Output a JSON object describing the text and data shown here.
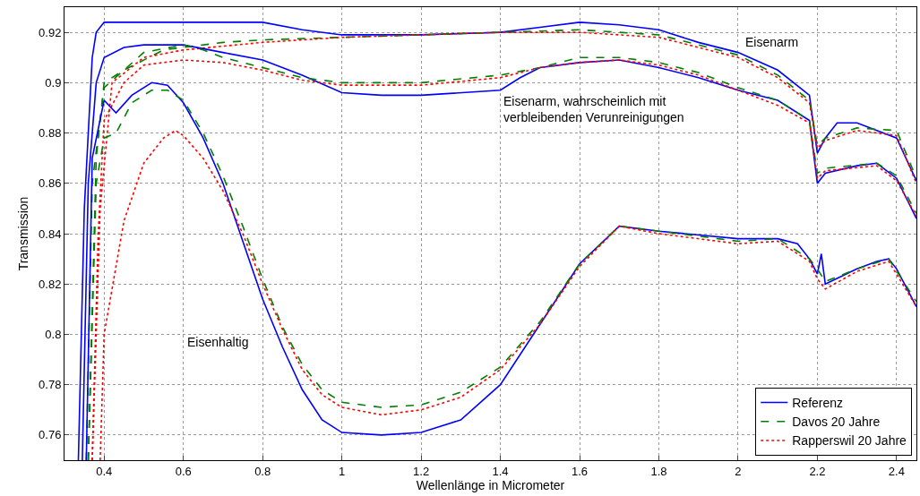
{
  "chart_data": {
    "type": "line",
    "xlabel": "Wellenlänge in Micrometer",
    "ylabel": "Transmission",
    "xlim": [
      0.3,
      2.45
    ],
    "ylim": [
      0.75,
      0.93
    ],
    "xticks": [
      0.4,
      0.6,
      0.8,
      1,
      1.2,
      1.4,
      1.6,
      1.8,
      2,
      2.2,
      2.4
    ],
    "yticks": [
      0.76,
      0.78,
      0.8,
      0.82,
      0.84,
      0.86,
      0.88,
      0.9,
      0.92
    ],
    "grid": true,
    "legend": "bottom right",
    "marker": "none",
    "annotations": [
      "Eisenarm",
      "Eisenarm, wahrscheinlich mit\nverbleibenden Verunreinigungen",
      "Eisenhaltig"
    ],
    "series": [
      {
        "name": "Referenz",
        "color": "#0000ff",
        "line_style": "solid",
        "x": [
          0.335,
          0.35,
          0.37,
          0.38,
          0.4,
          0.5,
          0.6,
          0.8,
          0.9,
          1.0,
          1.2,
          1.4,
          1.5,
          1.6,
          1.7,
          1.8,
          1.9,
          2.0,
          2.1,
          2.18,
          2.2,
          2.22,
          2.25,
          2.3,
          2.4,
          2.45
        ],
        "values": [
          0.75,
          0.85,
          0.91,
          0.92,
          0.924,
          0.924,
          0.924,
          0.924,
          0.921,
          0.919,
          0.919,
          0.92,
          0.922,
          0.924,
          0.923,
          0.921,
          0.916,
          0.912,
          0.905,
          0.895,
          0.872,
          0.878,
          0.884,
          0.884,
          0.878,
          0.861
        ]
      },
      {
        "name": "Davos 20 Jahre",
        "color": "#007f00",
        "line_style": "dashed",
        "x": [
          0.36,
          0.38,
          0.4,
          0.45,
          0.55,
          0.7,
          0.8,
          1.0,
          1.2,
          1.4,
          1.6,
          1.8,
          2.0,
          2.1,
          2.18,
          2.2,
          2.22,
          2.3,
          2.4,
          2.45
        ],
        "values": [
          0.75,
          0.87,
          0.9,
          0.905,
          0.913,
          0.916,
          0.917,
          0.918,
          0.919,
          0.92,
          0.921,
          0.919,
          0.911,
          0.903,
          0.893,
          0.875,
          0.878,
          0.882,
          0.881,
          0.862
        ]
      },
      {
        "name": "Rapperswil 20 Jahre",
        "color": "#ff0000",
        "line_style": "dotted",
        "x": [
          0.37,
          0.39,
          0.42,
          0.5,
          0.6,
          0.8,
          1.0,
          1.2,
          1.4,
          1.6,
          1.8,
          2.0,
          2.1,
          2.18,
          2.2,
          2.22,
          2.3,
          2.4,
          2.45
        ],
        "values": [
          0.75,
          0.85,
          0.9,
          0.91,
          0.913,
          0.916,
          0.918,
          0.919,
          0.92,
          0.92,
          0.918,
          0.91,
          0.902,
          0.892,
          0.874,
          0.877,
          0.881,
          0.879,
          0.86
        ]
      },
      {
        "color": "#0000ff",
        "line_style": "solid",
        "x": [
          0.345,
          0.36,
          0.38,
          0.4,
          0.45,
          0.5,
          0.6,
          0.7,
          0.8,
          0.9,
          1.0,
          1.1,
          1.2,
          1.4,
          1.45,
          1.5,
          1.6,
          1.7,
          1.8,
          1.9,
          2.0,
          2.1,
          2.18,
          2.2,
          2.22,
          2.3,
          2.35,
          2.4,
          2.45
        ],
        "values": [
          0.75,
          0.86,
          0.9,
          0.91,
          0.914,
          0.915,
          0.915,
          0.912,
          0.909,
          0.903,
          0.896,
          0.895,
          0.895,
          0.897,
          0.902,
          0.906,
          0.908,
          0.909,
          0.906,
          0.902,
          0.897,
          0.893,
          0.885,
          0.86,
          0.864,
          0.867,
          0.868,
          0.862,
          0.846
        ]
      },
      {
        "color": "#007f00",
        "line_style": "dashed",
        "x": [
          0.355,
          0.37,
          0.4,
          0.45,
          0.5,
          0.6,
          0.65,
          0.7,
          0.8,
          0.9,
          1.0,
          1.2,
          1.4,
          1.5,
          1.6,
          1.7,
          1.8,
          1.9,
          2.0,
          2.1,
          2.18,
          2.2,
          2.22,
          2.35,
          2.4,
          2.45
        ],
        "values": [
          0.75,
          0.86,
          0.898,
          0.905,
          0.912,
          0.915,
          0.913,
          0.91,
          0.906,
          0.902,
          0.9,
          0.9,
          0.903,
          0.906,
          0.91,
          0.91,
          0.908,
          0.904,
          0.898,
          0.893,
          0.885,
          0.864,
          0.866,
          0.868,
          0.863,
          0.848
        ]
      },
      {
        "color": "#ff0000",
        "line_style": "dotted",
        "x": [
          0.37,
          0.385,
          0.4,
          0.45,
          0.5,
          0.6,
          0.7,
          0.8,
          0.9,
          1.0,
          1.2,
          1.4,
          1.5,
          1.6,
          1.7,
          1.8,
          1.9,
          2.0,
          2.1,
          2.18,
          2.2,
          2.22,
          2.35,
          2.4,
          2.45
        ],
        "values": [
          0.75,
          0.84,
          0.885,
          0.9,
          0.907,
          0.909,
          0.908,
          0.905,
          0.901,
          0.899,
          0.899,
          0.902,
          0.906,
          0.908,
          0.909,
          0.907,
          0.903,
          0.897,
          0.891,
          0.884,
          0.862,
          0.865,
          0.867,
          0.861,
          0.847
        ]
      },
      {
        "color": "#0000ff",
        "line_style": "solid",
        "x": [
          0.355,
          0.37,
          0.4,
          0.43,
          0.47,
          0.52,
          0.56,
          0.6,
          0.65,
          0.7,
          0.75,
          0.8,
          0.85,
          0.9,
          0.95,
          1.0,
          1.1,
          1.2,
          1.3,
          1.4,
          1.5,
          1.6,
          1.7,
          1.8,
          2.0,
          2.1,
          2.15,
          2.18,
          2.2,
          2.21,
          2.22,
          2.3,
          2.35,
          2.38,
          2.4,
          2.45
        ],
        "values": [
          0.75,
          0.87,
          0.893,
          0.888,
          0.895,
          0.9,
          0.899,
          0.892,
          0.878,
          0.86,
          0.837,
          0.814,
          0.795,
          0.778,
          0.766,
          0.761,
          0.76,
          0.761,
          0.766,
          0.78,
          0.804,
          0.828,
          0.843,
          0.841,
          0.838,
          0.838,
          0.836,
          0.83,
          0.824,
          0.832,
          0.82,
          0.826,
          0.829,
          0.83,
          0.826,
          0.811
        ]
      },
      {
        "color": "#007f00",
        "line_style": "dashed",
        "x": [
          0.36,
          0.38,
          0.4,
          0.43,
          0.47,
          0.52,
          0.56,
          0.6,
          0.65,
          0.7,
          0.75,
          0.8,
          0.85,
          0.9,
          0.95,
          1.0,
          1.1,
          1.2,
          1.3,
          1.4,
          1.5,
          1.6,
          1.7,
          1.8,
          2.0,
          2.1,
          2.18,
          2.2,
          2.22,
          2.3,
          2.38,
          2.45
        ],
        "values": [
          0.75,
          0.86,
          0.878,
          0.88,
          0.892,
          0.897,
          0.897,
          0.893,
          0.88,
          0.863,
          0.843,
          0.822,
          0.803,
          0.788,
          0.778,
          0.773,
          0.771,
          0.772,
          0.777,
          0.787,
          0.805,
          0.828,
          0.843,
          0.841,
          0.837,
          0.838,
          0.83,
          0.826,
          0.821,
          0.826,
          0.83,
          0.813
        ]
      },
      {
        "color": "#ff0000",
        "line_style": "dotted",
        "x": [
          0.39,
          0.4,
          0.45,
          0.5,
          0.55,
          0.58,
          0.6,
          0.65,
          0.7,
          0.75,
          0.8,
          0.85,
          0.9,
          0.95,
          1.0,
          1.1,
          1.2,
          1.3,
          1.4,
          1.5,
          1.6,
          1.7,
          1.8,
          2.0,
          2.1,
          2.18,
          2.2,
          2.22,
          2.3,
          2.38,
          2.45
        ],
        "values": [
          0.75,
          0.8,
          0.845,
          0.868,
          0.878,
          0.881,
          0.879,
          0.87,
          0.857,
          0.84,
          0.82,
          0.802,
          0.786,
          0.776,
          0.771,
          0.768,
          0.77,
          0.775,
          0.786,
          0.804,
          0.827,
          0.843,
          0.84,
          0.836,
          0.837,
          0.829,
          0.822,
          0.818,
          0.825,
          0.829,
          0.811
        ]
      }
    ]
  }
}
